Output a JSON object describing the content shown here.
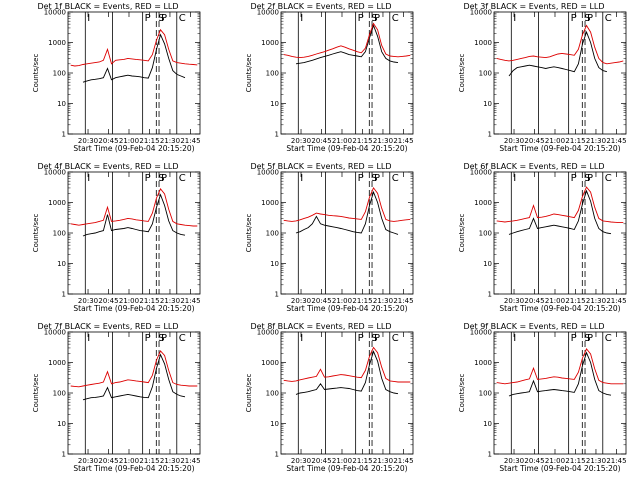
{
  "figure": {
    "subtitle_prefix": "BLACK = Events, RED = LLD",
    "xlabel": "Start Time (09-Feb-04 20:15:20)",
    "ylabel": "Counts/sec",
    "interval_marks": [
      "I",
      "P",
      "S",
      "P",
      "C"
    ],
    "colors": {
      "events": "#000000",
      "lld": "#dd0000",
      "axis": "#000000"
    }
  },
  "chart_data": [
    {
      "type": "line",
      "title": "Det 1f BLACK = Events, RED = LLD",
      "xticks": [
        "20:30",
        "20:45",
        "21:00",
        "21:15",
        "21:30",
        "21:45"
      ],
      "yticks": [
        "1",
        "10",
        "100",
        "1000",
        "10000"
      ],
      "ylim": [
        1,
        10000
      ],
      "yscale": "log",
      "series": [
        {
          "name": "Events",
          "values": [
            null,
            null,
            null,
            50,
            55,
            60,
            62,
            65,
            70,
            140,
            60,
            70,
            75,
            80,
            85,
            80,
            78,
            75,
            70,
            68,
            150,
            600,
            1800,
            900,
            300,
            120,
            90,
            80,
            70,
            null,
            null,
            null
          ]
        },
        {
          "name": "LLD",
          "values": [
            180,
            170,
            175,
            190,
            200,
            210,
            220,
            230,
            260,
            600,
            200,
            260,
            270,
            280,
            300,
            290,
            280,
            270,
            260,
            250,
            400,
            1200,
            2600,
            1800,
            600,
            250,
            220,
            210,
            200,
            195,
            190,
            185
          ]
        }
      ],
      "vlines": [
        "20:28",
        "20:48",
        "21:10",
        "21:20",
        "21:22",
        "21:35"
      ]
    },
    {
      "type": "line",
      "title": "Det 2f BLACK = Events, RED = LLD",
      "xticks": [
        "20:30",
        "20:45",
        "21:00",
        "21:15",
        "21:30",
        "21:45"
      ],
      "yticks": [
        "1",
        "10",
        "100",
        "1000",
        "10000"
      ],
      "ylim": [
        1,
        10000
      ],
      "yscale": "log",
      "series": [
        {
          "name": "Events",
          "values": [
            null,
            null,
            null,
            200,
            210,
            220,
            240,
            260,
            290,
            320,
            350,
            380,
            420,
            460,
            500,
            450,
            400,
            380,
            360,
            340,
            500,
            1400,
            3600,
            1600,
            500,
            300,
            250,
            230,
            220,
            null,
            null,
            null
          ]
        },
        {
          "name": "LLD",
          "values": [
            400,
            380,
            350,
            330,
            320,
            330,
            350,
            380,
            420,
            460,
            500,
            560,
            620,
            700,
            780,
            700,
            620,
            560,
            500,
            460,
            650,
            1800,
            4200,
            2600,
            800,
            420,
            360,
            350,
            340,
            350,
            360,
            380
          ]
        }
      ],
      "vlines": [
        "20:28",
        "20:48",
        "21:10",
        "21:20",
        "21:22",
        "21:35"
      ]
    },
    {
      "type": "line",
      "title": "Det 3f BLACK = Events, RED = LLD",
      "xticks": [
        "20:30",
        "20:45",
        "21:00",
        "21:15",
        "21:30",
        "21:45"
      ],
      "yticks": [
        "1",
        "10",
        "100",
        "1000",
        "10000"
      ],
      "ylim": [
        1,
        10000
      ],
      "yscale": "log",
      "series": [
        {
          "name": "Events",
          "values": [
            null,
            null,
            null,
            80,
            120,
            150,
            160,
            170,
            180,
            170,
            160,
            150,
            140,
            150,
            160,
            150,
            140,
            130,
            120,
            110,
            200,
            900,
            2200,
            1000,
            300,
            150,
            120,
            110,
            null,
            null,
            null,
            null
          ]
        },
        {
          "name": "LLD",
          "values": [
            300,
            280,
            260,
            250,
            260,
            280,
            300,
            320,
            350,
            360,
            340,
            330,
            320,
            340,
            380,
            420,
            440,
            420,
            400,
            380,
            600,
            1800,
            3600,
            2200,
            700,
            300,
            220,
            200,
            210,
            220,
            230,
            250
          ]
        }
      ],
      "vlines": [
        "20:28",
        "20:48",
        "21:10",
        "21:20",
        "21:22",
        "21:35"
      ]
    },
    {
      "type": "line",
      "title": "Det 4f BLACK = Events, RED = LLD",
      "xticks": [
        "20:30",
        "20:45",
        "21:00",
        "21:15",
        "21:30",
        "21:45"
      ],
      "yticks": [
        "1",
        "10",
        "100",
        "1000",
        "10000"
      ],
      "ylim": [
        1,
        10000
      ],
      "yscale": "log",
      "series": [
        {
          "name": "Events",
          "values": [
            null,
            null,
            null,
            80,
            90,
            95,
            100,
            110,
            120,
            400,
            120,
            130,
            135,
            140,
            150,
            140,
            130,
            120,
            115,
            110,
            200,
            700,
            1800,
            800,
            250,
            120,
            100,
            90,
            85,
            null,
            null,
            null
          ]
        },
        {
          "name": "LLD",
          "values": [
            200,
            190,
            180,
            190,
            200,
            210,
            220,
            240,
            260,
            700,
            240,
            250,
            260,
            280,
            300,
            290,
            270,
            260,
            250,
            240,
            450,
            1400,
            2800,
            1900,
            600,
            240,
            200,
            190,
            180,
            175,
            170,
            170
          ]
        }
      ],
      "vlines": [
        "20:28",
        "20:48",
        "21:10",
        "21:20",
        "21:22",
        "21:35"
      ]
    },
    {
      "type": "line",
      "title": "Det 5f BLACK = Events, RED = LLD",
      "xticks": [
        "20:30",
        "20:45",
        "21:00",
        "21:15",
        "21:30",
        "21:45"
      ],
      "yticks": [
        "1",
        "10",
        "100",
        "1000",
        "10000"
      ],
      "ylim": [
        1,
        10000
      ],
      "yscale": "log",
      "series": [
        {
          "name": "Events",
          "values": [
            null,
            null,
            null,
            100,
            110,
            130,
            150,
            200,
            350,
            200,
            180,
            170,
            160,
            150,
            140,
            130,
            120,
            110,
            105,
            100,
            200,
            800,
            2200,
            1000,
            300,
            130,
            110,
            100,
            90,
            null,
            null,
            null
          ]
        },
        {
          "name": "LLD",
          "values": [
            260,
            250,
            240,
            250,
            270,
            300,
            330,
            380,
            450,
            420,
            400,
            380,
            370,
            360,
            350,
            330,
            310,
            300,
            290,
            280,
            500,
            1500,
            3000,
            2000,
            650,
            280,
            250,
            240,
            250,
            260,
            270,
            280
          ]
        }
      ],
      "vlines": [
        "20:28",
        "20:48",
        "21:10",
        "21:20",
        "21:22",
        "21:35"
      ]
    },
    {
      "type": "line",
      "title": "Det 6f BLACK = Events, RED = LLD",
      "xticks": [
        "20:30",
        "20:45",
        "21:00",
        "21:15",
        "21:30",
        "21:45"
      ],
      "yticks": [
        "1",
        "10",
        "100",
        "1000",
        "10000"
      ],
      "ylim": [
        1,
        10000
      ],
      "yscale": "log",
      "series": [
        {
          "name": "Events",
          "values": [
            null,
            null,
            null,
            90,
            100,
            110,
            120,
            130,
            140,
            300,
            140,
            150,
            160,
            170,
            180,
            170,
            160,
            150,
            140,
            130,
            250,
            900,
            2400,
            1100,
            300,
            140,
            110,
            100,
            95,
            null,
            null,
            null
          ]
        },
        {
          "name": "LLD",
          "values": [
            250,
            240,
            230,
            240,
            250,
            260,
            280,
            300,
            320,
            800,
            320,
            330,
            350,
            380,
            420,
            400,
            380,
            360,
            340,
            320,
            550,
            1600,
            3200,
            2200,
            700,
            300,
            250,
            240,
            230,
            225,
            220,
            220
          ]
        }
      ],
      "vlines": [
        "20:28",
        "20:48",
        "21:10",
        "21:20",
        "21:22",
        "21:35"
      ]
    },
    {
      "type": "line",
      "title": "Det 7f BLACK = Events, RED = LLD",
      "xticks": [
        "20:30",
        "20:45",
        "21:00",
        "21:15",
        "21:30",
        "21:45"
      ],
      "yticks": [
        "1",
        "10",
        "100",
        "1000",
        "10000"
      ],
      "ylim": [
        1,
        10000
      ],
      "yscale": "log",
      "series": [
        {
          "name": "Events",
          "values": [
            null,
            null,
            null,
            60,
            65,
            70,
            72,
            75,
            80,
            150,
            70,
            75,
            80,
            85,
            90,
            85,
            80,
            75,
            72,
            70,
            160,
            650,
            1800,
            900,
            280,
            110,
            90,
            80,
            75,
            null,
            null,
            null
          ]
        },
        {
          "name": "LLD",
          "values": [
            170,
            165,
            160,
            170,
            180,
            190,
            200,
            210,
            230,
            500,
            200,
            220,
            230,
            250,
            270,
            260,
            250,
            240,
            230,
            220,
            380,
            1200,
            2400,
            1700,
            550,
            220,
            190,
            180,
            175,
            170,
            170,
            170
          ]
        }
      ],
      "vlines": [
        "20:28",
        "20:48",
        "21:10",
        "21:20",
        "21:22",
        "21:35"
      ]
    },
    {
      "type": "line",
      "title": "Det 8f BLACK = Events, RED = LLD",
      "xticks": [
        "20:30",
        "20:45",
        "21:00",
        "21:15",
        "21:30",
        "21:45"
      ],
      "yticks": [
        "1",
        "10",
        "100",
        "1000",
        "10000"
      ],
      "ylim": [
        1,
        10000
      ],
      "yscale": "log",
      "series": [
        {
          "name": "Events",
          "values": [
            null,
            null,
            null,
            90,
            100,
            105,
            110,
            120,
            130,
            200,
            130,
            135,
            140,
            145,
            150,
            145,
            140,
            130,
            120,
            115,
            220,
            850,
            2300,
            1100,
            300,
            130,
            110,
            100,
            95,
            null,
            null,
            null
          ]
        },
        {
          "name": "LLD",
          "values": [
            260,
            250,
            240,
            250,
            270,
            290,
            310,
            330,
            350,
            600,
            330,
            340,
            360,
            380,
            400,
            390,
            370,
            350,
            330,
            320,
            550,
            1600,
            3100,
            2100,
            700,
            300,
            250,
            240,
            230,
            230,
            230,
            230
          ]
        }
      ],
      "vlines": [
        "20:28",
        "20:48",
        "21:10",
        "21:20",
        "21:22",
        "21:35"
      ]
    },
    {
      "type": "line",
      "title": "Det 9f BLACK = Events, RED = LLD",
      "xticks": [
        "20:30",
        "20:45",
        "21:00",
        "21:15",
        "21:30",
        "21:45"
      ],
      "yticks": [
        "1",
        "10",
        "100",
        "1000",
        "10000"
      ],
      "ylim": [
        1,
        10000
      ],
      "yscale": "log",
      "series": [
        {
          "name": "Events",
          "values": [
            null,
            null,
            null,
            80,
            90,
            95,
            100,
            105,
            110,
            250,
            110,
            115,
            120,
            125,
            130,
            125,
            120,
            115,
            110,
            105,
            200,
            800,
            2100,
            1000,
            280,
            120,
            100,
            90,
            85,
            null,
            null,
            null
          ]
        },
        {
          "name": "LLD",
          "values": [
            220,
            210,
            200,
            210,
            220,
            230,
            250,
            270,
            290,
            650,
            280,
            290,
            300,
            320,
            340,
            330,
            310,
            300,
            290,
            280,
            480,
            1400,
            2800,
            1900,
            620,
            260,
            220,
            210,
            200,
            200,
            200,
            200
          ]
        }
      ],
      "vlines": [
        "20:28",
        "20:48",
        "21:10",
        "21:20",
        "21:22",
        "21:35"
      ]
    }
  ]
}
